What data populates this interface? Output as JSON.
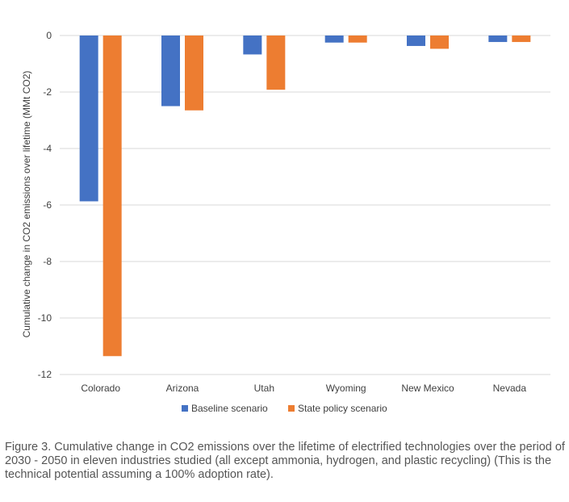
{
  "chart_data": {
    "type": "bar",
    "categories": [
      "Colorado",
      "Arizona",
      "Utah",
      "Wyoming",
      "New Mexico",
      "Nevada"
    ],
    "series": [
      {
        "name": "Baseline scenario",
        "color": "#4472C4",
        "values": [
          -5.87,
          -2.5,
          -0.67,
          -0.25,
          -0.37,
          -0.23
        ]
      },
      {
        "name": "State policy scenario",
        "color": "#ED7D31",
        "values": [
          -11.35,
          -2.65,
          -1.92,
          -0.25,
          -0.47,
          -0.23
        ]
      }
    ],
    "ylabel": "Cumulative change in CO2 emissions over lifetime (MMt CO2)",
    "xlabel": "",
    "ylim": [
      -12,
      0
    ],
    "yticks": [
      0,
      -2,
      -4,
      -6,
      -8,
      -10,
      -12
    ],
    "grid": true,
    "legend": "bottom"
  },
  "caption": "Figure 3. Cumulative change in CO2 emissions over the lifetime of electrified technologies over the period of 2030 - 2050 in eleven industries studied (all except ammonia, hydrogen, and plastic recycling) (This is the technical potential assuming a 100% adoption rate)."
}
